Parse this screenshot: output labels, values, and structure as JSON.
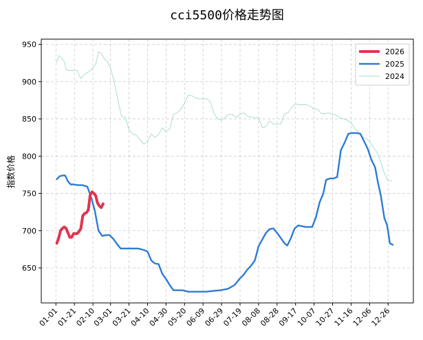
{
  "chart_data": {
    "type": "line",
    "title": "cci5500价格走势图",
    "xlabel": "",
    "ylabel": "指数价格",
    "ylim": [
      603,
      957
    ],
    "yticks": [
      650,
      700,
      750,
      800,
      850,
      900,
      950
    ],
    "xticks": [
      "01-01",
      "01-21",
      "02-10",
      "03-01",
      "03-21",
      "04-10",
      "04-30",
      "05-20",
      "06-09",
      "06-29",
      "07-19",
      "08-08",
      "08-28",
      "09-17",
      "10-07",
      "10-27",
      "11-16",
      "12-06",
      "12-26"
    ],
    "grid": true,
    "legend_position": "top-right",
    "colors": {
      "2026": "#e0344f",
      "2025": "#2b7bd6",
      "2024": "#a3d9cc"
    },
    "series": [
      {
        "name": "2026",
        "points": [
          [
            "01-02",
            683
          ],
          [
            "01-04",
            690
          ],
          [
            "01-06",
            700
          ],
          [
            "01-08",
            703
          ],
          [
            "01-10",
            705
          ],
          [
            "01-12",
            703
          ],
          [
            "01-14",
            697
          ],
          [
            "01-16",
            691
          ],
          [
            "01-18",
            691
          ],
          [
            "01-20",
            696
          ],
          [
            "01-22",
            696
          ],
          [
            "01-24",
            696
          ],
          [
            "01-26",
            699
          ],
          [
            "01-28",
            703
          ],
          [
            "01-30",
            720
          ],
          [
            "02-01",
            723
          ],
          [
            "02-03",
            724
          ],
          [
            "02-05",
            728
          ],
          [
            "02-07",
            748
          ],
          [
            "02-09",
            752
          ],
          [
            "02-11",
            750
          ],
          [
            "02-13",
            747
          ],
          [
            "02-15",
            737
          ],
          [
            "02-17",
            733
          ],
          [
            "02-19",
            731
          ],
          [
            "02-21",
            736
          ]
        ]
      },
      {
        "name": "2025",
        "points": [
          [
            "01-02",
            769
          ],
          [
            "01-05",
            773
          ],
          [
            "01-08",
            774
          ],
          [
            "01-11",
            774
          ],
          [
            "01-14",
            766
          ],
          [
            "01-17",
            762
          ],
          [
            "01-20",
            762
          ],
          [
            "01-25",
            761
          ],
          [
            "01-30",
            761
          ],
          [
            "02-04",
            759
          ],
          [
            "02-08",
            745
          ],
          [
            "02-12",
            727
          ],
          [
            "02-16",
            700
          ],
          [
            "02-20",
            693
          ],
          [
            "02-24",
            694
          ],
          [
            "02-28",
            694
          ],
          [
            "03-04",
            689
          ],
          [
            "03-08",
            682
          ],
          [
            "03-12",
            676
          ],
          [
            "03-20",
            676
          ],
          [
            "03-31",
            676
          ],
          [
            "04-06",
            674
          ],
          [
            "04-10",
            672
          ],
          [
            "04-14",
            660
          ],
          [
            "04-18",
            656
          ],
          [
            "04-22",
            655
          ],
          [
            "04-26",
            642
          ],
          [
            "04-30",
            635
          ],
          [
            "05-04",
            627
          ],
          [
            "05-08",
            620
          ],
          [
            "05-12",
            620
          ],
          [
            "05-18",
            620
          ],
          [
            "05-24",
            618
          ],
          [
            "06-02",
            618
          ],
          [
            "06-12",
            618
          ],
          [
            "06-20",
            619
          ],
          [
            "06-28",
            620
          ],
          [
            "07-06",
            622
          ],
          [
            "07-13",
            627
          ],
          [
            "07-19",
            636
          ],
          [
            "07-23",
            641
          ],
          [
            "07-27",
            648
          ],
          [
            "07-31",
            653
          ],
          [
            "08-04",
            660
          ],
          [
            "08-08",
            679
          ],
          [
            "08-12",
            688
          ],
          [
            "08-16",
            697
          ],
          [
            "08-20",
            702
          ],
          [
            "08-24",
            703
          ],
          [
            "08-28",
            697
          ],
          [
            "09-01",
            690
          ],
          [
            "09-05",
            683
          ],
          [
            "09-08",
            680
          ],
          [
            "09-12",
            690
          ],
          [
            "09-16",
            703
          ],
          [
            "09-20",
            707
          ],
          [
            "09-24",
            706
          ],
          [
            "09-28",
            705
          ],
          [
            "10-05",
            705
          ],
          [
            "10-09",
            718
          ],
          [
            "10-13",
            738
          ],
          [
            "10-17",
            750
          ],
          [
            "10-20",
            768
          ],
          [
            "10-24",
            770
          ],
          [
            "10-28",
            770
          ],
          [
            "11-01",
            772
          ],
          [
            "11-05",
            808
          ],
          [
            "11-09",
            818
          ],
          [
            "11-13",
            830
          ],
          [
            "11-17",
            831
          ],
          [
            "11-22",
            831
          ],
          [
            "11-26",
            830
          ],
          [
            "11-30",
            820
          ],
          [
            "12-04",
            810
          ],
          [
            "12-08",
            795
          ],
          [
            "12-12",
            785
          ],
          [
            "12-15",
            765
          ],
          [
            "12-18",
            748
          ],
          [
            "12-22",
            717
          ],
          [
            "12-25",
            707
          ],
          [
            "12-28",
            683
          ],
          [
            "12-31",
            681
          ]
        ]
      },
      {
        "name": "2024",
        "points": [
          [
            "01-02",
            925
          ],
          [
            "01-04",
            935
          ],
          [
            "01-07",
            932
          ],
          [
            "01-10",
            927
          ],
          [
            "01-12",
            916
          ],
          [
            "01-16",
            915
          ],
          [
            "01-20",
            915
          ],
          [
            "01-24",
            915
          ],
          [
            "01-28",
            904
          ],
          [
            "02-01",
            910
          ],
          [
            "02-05",
            913
          ],
          [
            "02-09",
            917
          ],
          [
            "02-13",
            923
          ],
          [
            "02-16",
            940
          ],
          [
            "02-19",
            938
          ],
          [
            "02-22",
            931
          ],
          [
            "02-26",
            926
          ],
          [
            "03-01",
            918
          ],
          [
            "03-05",
            900
          ],
          [
            "03-09",
            875
          ],
          [
            "03-13",
            853
          ],
          [
            "03-17",
            852
          ],
          [
            "03-21",
            835
          ],
          [
            "03-25",
            830
          ],
          [
            "03-29",
            828
          ],
          [
            "04-02",
            822
          ],
          [
            "04-06",
            816
          ],
          [
            "04-10",
            819
          ],
          [
            "04-14",
            830
          ],
          [
            "04-18",
            825
          ],
          [
            "04-22",
            829
          ],
          [
            "04-26",
            838
          ],
          [
            "04-30",
            833
          ],
          [
            "05-04",
            837
          ],
          [
            "05-08",
            856
          ],
          [
            "05-12",
            858
          ],
          [
            "05-16",
            863
          ],
          [
            "05-20",
            871
          ],
          [
            "05-24",
            882
          ],
          [
            "05-28",
            881
          ],
          [
            "06-01",
            878
          ],
          [
            "06-05",
            877
          ],
          [
            "06-09",
            877
          ],
          [
            "06-13",
            877
          ],
          [
            "06-17",
            873
          ],
          [
            "06-21",
            857
          ],
          [
            "06-25",
            850
          ],
          [
            "06-29",
            848
          ],
          [
            "07-03",
            852
          ],
          [
            "07-07",
            856
          ],
          [
            "07-11",
            856
          ],
          [
            "07-15",
            852
          ],
          [
            "07-19",
            856
          ],
          [
            "07-23",
            858
          ],
          [
            "07-27",
            854
          ],
          [
            "07-31",
            852
          ],
          [
            "08-04",
            852
          ],
          [
            "08-08",
            851
          ],
          [
            "08-12",
            838
          ],
          [
            "08-16",
            840
          ],
          [
            "08-20",
            847
          ],
          [
            "08-24",
            843
          ],
          [
            "08-28",
            843
          ],
          [
            "09-01",
            843
          ],
          [
            "09-05",
            857
          ],
          [
            "09-09",
            858
          ],
          [
            "09-13",
            866
          ],
          [
            "09-17",
            870
          ],
          [
            "09-21",
            869
          ],
          [
            "09-25",
            869
          ],
          [
            "09-29",
            869
          ],
          [
            "10-03",
            867
          ],
          [
            "10-07",
            863
          ],
          [
            "10-11",
            863
          ],
          [
            "10-15",
            857
          ],
          [
            "10-19",
            857
          ],
          [
            "10-23",
            858
          ],
          [
            "10-27",
            856
          ],
          [
            "10-31",
            855
          ],
          [
            "11-04",
            851
          ],
          [
            "11-08",
            850
          ],
          [
            "11-12",
            848
          ],
          [
            "11-16",
            845
          ],
          [
            "11-20",
            837
          ],
          [
            "11-24",
            832
          ],
          [
            "11-28",
            825
          ],
          [
            "12-02",
            824
          ],
          [
            "12-06",
            820
          ],
          [
            "12-10",
            812
          ],
          [
            "12-14",
            805
          ],
          [
            "12-18",
            792
          ],
          [
            "12-22",
            777
          ],
          [
            "12-26",
            767
          ],
          [
            "12-30",
            767
          ]
        ]
      }
    ]
  }
}
